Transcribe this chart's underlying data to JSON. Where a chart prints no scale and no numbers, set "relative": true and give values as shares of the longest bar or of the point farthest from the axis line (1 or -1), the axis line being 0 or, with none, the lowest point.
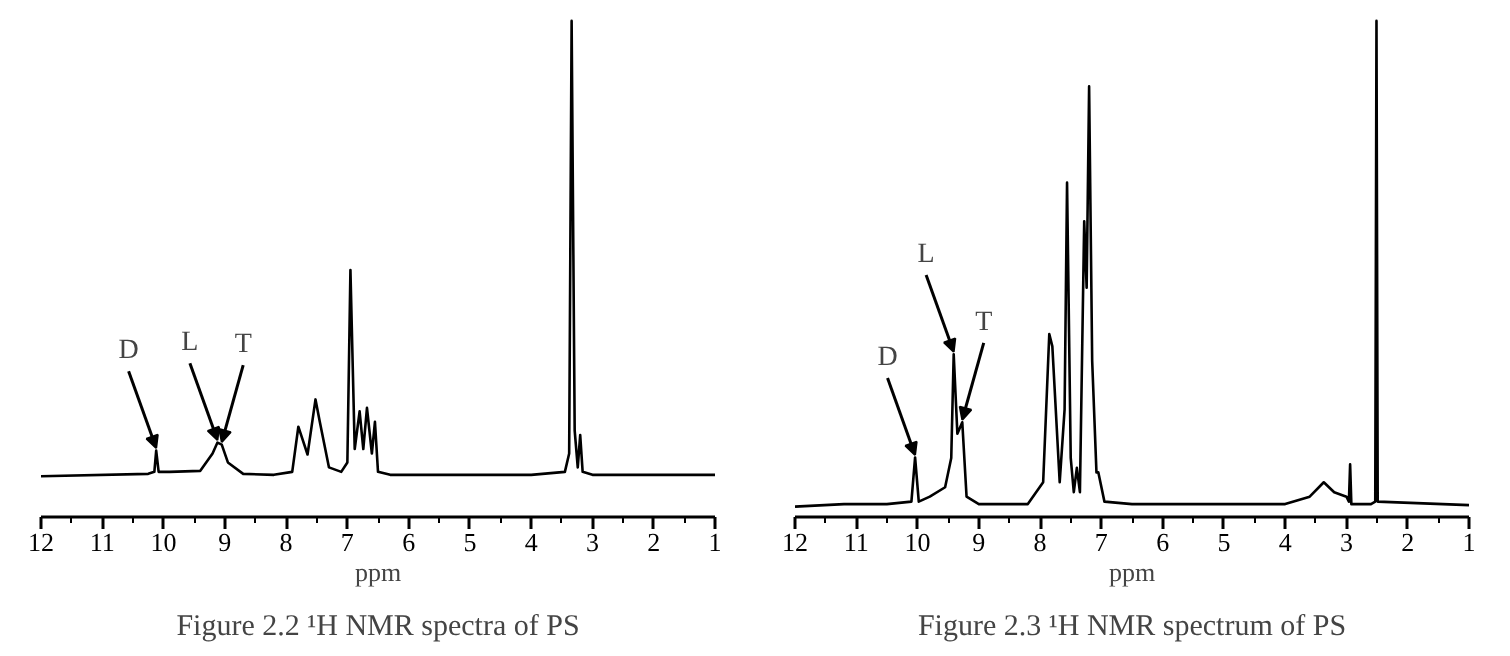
{
  "chart_data": [
    {
      "type": "line",
      "title": "Figure 2.2 ¹H NMR spectra of PS",
      "xlabel": "ppm",
      "relative": true,
      "xlim": [
        12,
        1
      ],
      "xticks": [
        12,
        11,
        10,
        9,
        8,
        7,
        6,
        5,
        4,
        3,
        2,
        1
      ],
      "grid": false,
      "marker": "none",
      "line_style": "solid",
      "tick_labels": "x",
      "annotations": [
        {
          "text": "D",
          "x": 10.12,
          "y": 0.134
        },
        {
          "text": "L",
          "x": 9.12,
          "y": 0.15
        },
        {
          "text": "T",
          "x": 9.05,
          "y": 0.146
        }
      ],
      "series": [
        {
          "color": "#000000",
          "x": [
            12,
            10.25,
            10.15,
            10.12,
            10.08,
            9.9,
            9.4,
            9.2,
            9.12,
            9.05,
            8.95,
            8.7,
            8.2,
            7.9,
            7.8,
            7.65,
            7.52,
            7.45,
            7.3,
            7.1,
            7.0,
            6.95,
            6.88,
            6.8,
            6.74,
            6.68,
            6.6,
            6.55,
            6.5,
            6.3,
            4,
            3.45,
            3.38,
            3.34,
            3.29,
            3.24,
            3.2,
            3.16,
            3.0,
            1
          ],
          "values": [
            0.082,
            0.087,
            0.091,
            0.134,
            0.091,
            0.091,
            0.093,
            0.128,
            0.15,
            0.146,
            0.11,
            0.087,
            0.085,
            0.091,
            0.182,
            0.126,
            0.237,
            0.192,
            0.1,
            0.091,
            0.11,
            0.498,
            0.137,
            0.213,
            0.137,
            0.22,
            0.128,
            0.192,
            0.091,
            0.085,
            0.085,
            0.091,
            0.128,
            1.0,
            0.174,
            0.1,
            0.165,
            0.091,
            0.085,
            0.085
          ]
        }
      ]
    },
    {
      "type": "line",
      "title": "Figure 2.3 ¹H NMR spectrum of PS",
      "xlabel": "ppm",
      "relative": true,
      "xlim": [
        12,
        1
      ],
      "xticks": [
        12,
        11,
        10,
        9,
        8,
        7,
        6,
        5,
        4,
        3,
        2,
        1
      ],
      "grid": false,
      "marker": "none",
      "line_style": "solid",
      "tick_labels": "x",
      "annotations": [
        {
          "text": "D",
          "x": 10.04,
          "y": 0.12
        },
        {
          "text": "L",
          "x": 9.41,
          "y": 0.328
        },
        {
          "text": "T",
          "x": 9.27,
          "y": 0.191
        }
      ],
      "series": [
        {
          "color": "#000000",
          "x": [
            12,
            11.2,
            10.5,
            10.1,
            10.04,
            9.98,
            9.8,
            9.55,
            9.45,
            9.41,
            9.35,
            9.27,
            9.2,
            9.0,
            8.2,
            7.95,
            7.85,
            7.8,
            7.68,
            7.6,
            7.56,
            7.5,
            7.45,
            7.4,
            7.35,
            7.28,
            7.24,
            7.2,
            7.15,
            7.08,
            7.05,
            6.95,
            6.5,
            4.0,
            3.6,
            3.37,
            3.2,
            3.0,
            2.96,
            2.94,
            2.92,
            2.6,
            2.53,
            2.51,
            2.49,
            1
          ],
          "values": [
            0.021,
            0.026,
            0.026,
            0.031,
            0.12,
            0.031,
            0.041,
            0.06,
            0.119,
            0.328,
            0.168,
            0.191,
            0.041,
            0.026,
            0.026,
            0.07,
            0.369,
            0.344,
            0.07,
            0.217,
            0.674,
            0.119,
            0.05,
            0.099,
            0.05,
            0.596,
            0.462,
            0.868,
            0.315,
            0.09,
            0.09,
            0.031,
            0.026,
            0.026,
            0.041,
            0.07,
            0.05,
            0.041,
            0.031,
            0.106,
            0.026,
            0.026,
            0.031,
            1.0,
            0.031,
            0.024
          ]
        }
      ]
    }
  ]
}
